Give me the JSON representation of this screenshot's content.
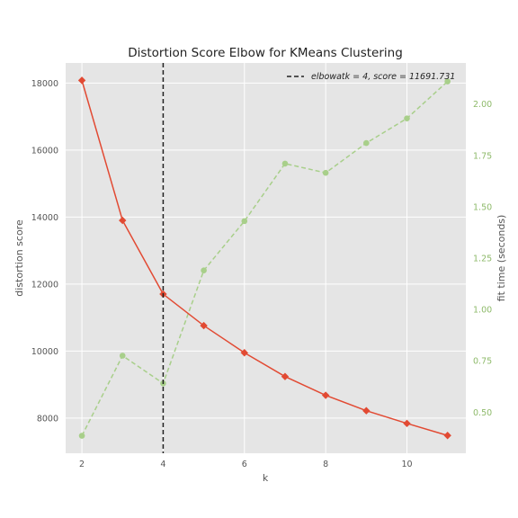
{
  "chart_data": {
    "type": "line",
    "title": "Distortion Score Elbow for KMeans Clustering",
    "xlabel": "k",
    "ylabel": "distortion score",
    "y2label": "fit time (seconds)",
    "xlim": [
      1.6,
      11.45
    ],
    "ylim": [
      6950,
      18600
    ],
    "y2lim": [
      0.3,
      2.2
    ],
    "xticks": [
      2,
      4,
      6,
      8,
      10
    ],
    "yticks": [
      8000,
      10000,
      12000,
      14000,
      16000,
      18000
    ],
    "y2ticks": [
      0.5,
      0.75,
      1.0,
      1.25,
      1.5,
      1.75,
      2.0
    ],
    "y2tick_labels": [
      "0.50",
      "0.75",
      "1.00",
      "1.25",
      "1.50",
      "1.75",
      "2.00"
    ],
    "x": [
      2,
      3,
      4,
      5,
      6,
      7,
      8,
      9,
      10,
      11
    ],
    "series": [
      {
        "axis": "left",
        "color": "#e24a33",
        "marker": "diamond",
        "values": [
          18080,
          13900,
          11700,
          10760,
          9950,
          9240,
          8680,
          8220,
          7840,
          7480
        ]
      },
      {
        "axis": "right",
        "color": "#a8cf8a",
        "marker": "circle",
        "dashed": true,
        "values": [
          0.385,
          0.775,
          0.64,
          1.19,
          1.43,
          1.71,
          1.665,
          1.81,
          1.93,
          2.11
        ]
      }
    ],
    "elbow": {
      "k": 4,
      "legend_label": "elbowatk = 4, score = 11691.731"
    },
    "legend_placement": "top-right",
    "grid": true,
    "background": "#e5e5e5",
    "y2_color": "#8eba6a"
  }
}
